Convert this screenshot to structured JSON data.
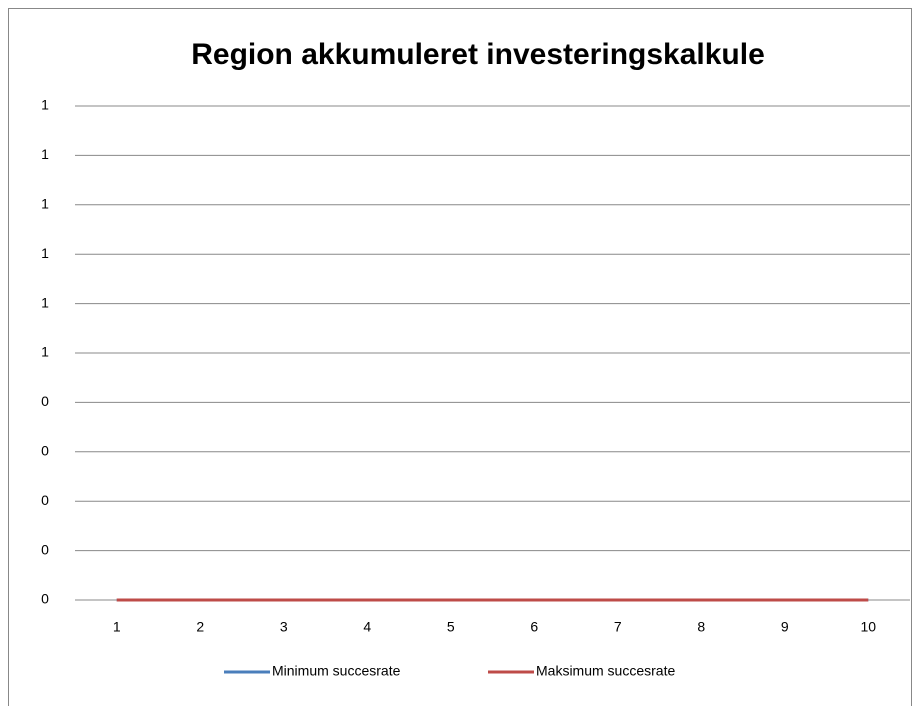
{
  "chart_data": {
    "type": "line",
    "title": "Region akkumuleret investeringskalkule",
    "categories": [
      "1",
      "2",
      "3",
      "4",
      "5",
      "6",
      "7",
      "8",
      "9",
      "10"
    ],
    "series": [
      {
        "name": "Minimum succesrate",
        "color": "#4a7ebb",
        "values": [
          0,
          0,
          0,
          0,
          0,
          0,
          0,
          0,
          0,
          0
        ]
      },
      {
        "name": "Maksimum succesrate",
        "color": "#be4b48",
        "values": [
          0,
          0,
          0,
          0,
          0,
          0,
          0,
          0,
          0,
          0
        ]
      }
    ],
    "ylim": [
      0,
      1
    ],
    "yticks": [
      0,
      {
        "value": 0.1,
        "label": "0"
      },
      {
        "value": 0.2,
        "label": "0"
      },
      {
        "value": 0.3,
        "label": "0"
      },
      {
        "value": 0.4,
        "label": "0"
      },
      {
        "value": 0.5,
        "label": "1"
      },
      {
        "value": 0.6,
        "label": "1"
      },
      {
        "value": 0.7,
        "label": "1"
      },
      {
        "value": 0.8,
        "label": "1"
      },
      {
        "value": 0.9,
        "label": "1"
      },
      1
    ],
    "grid": true,
    "legend": "bottom"
  }
}
